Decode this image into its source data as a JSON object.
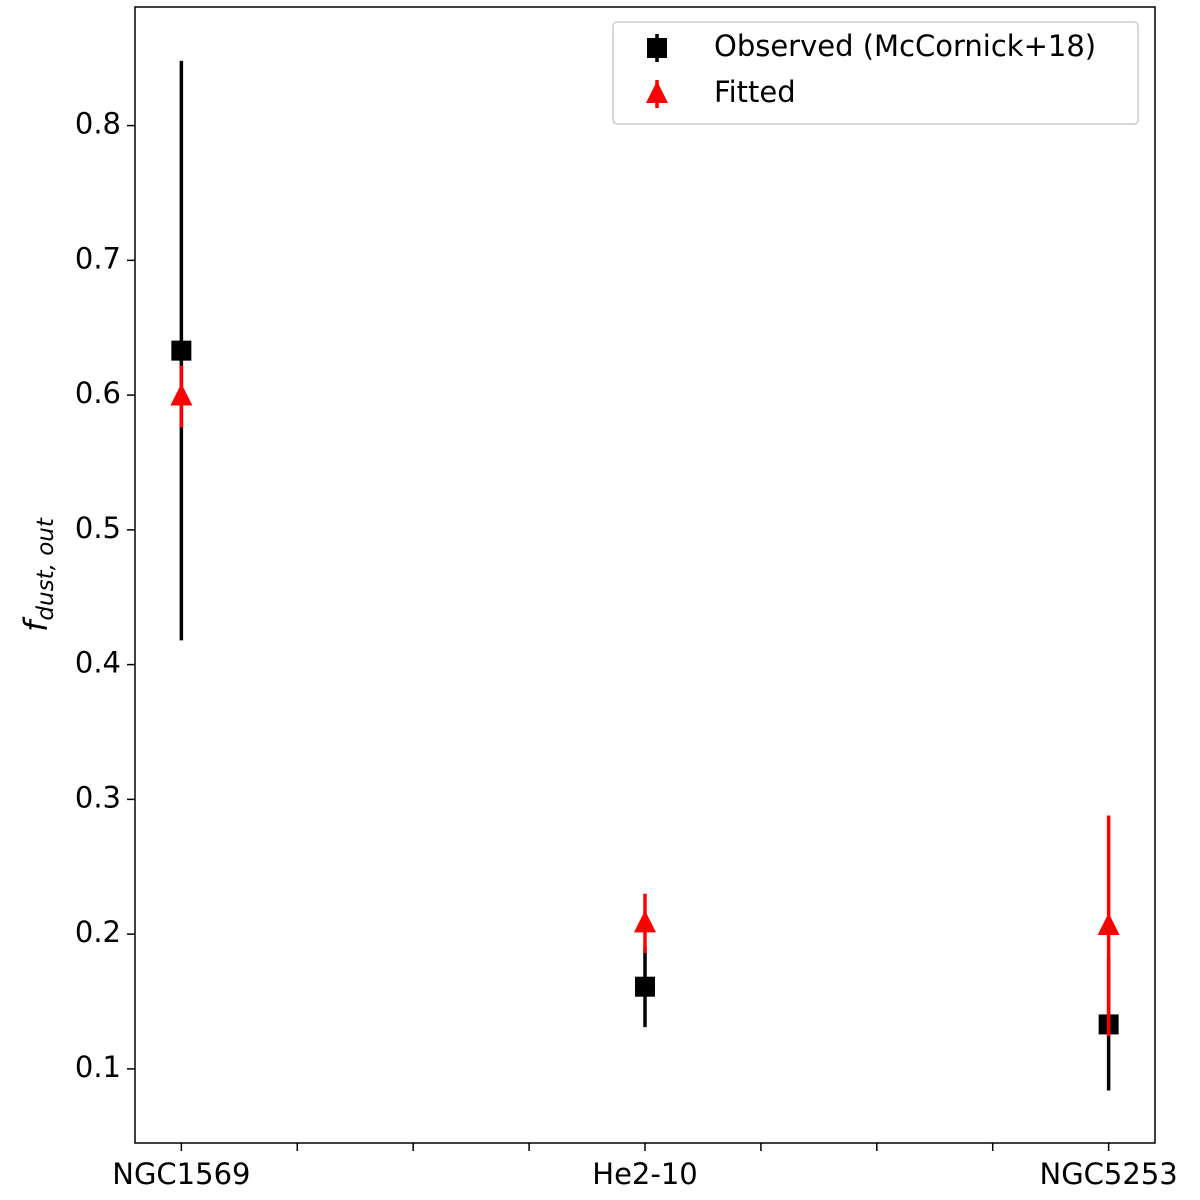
{
  "chart_data": {
    "type": "errorbar",
    "ylabel": "f",
    "ylabel_subscript": "dust, out",
    "categories": [
      "NGC1569",
      null,
      null,
      null,
      "He2-10",
      null,
      null,
      null,
      "NGC5253"
    ],
    "xlim": [
      -0.4,
      8.4
    ],
    "ylim": [
      0.045,
      0.888
    ],
    "yticks": [
      0.1,
      0.2,
      0.3,
      0.4,
      0.5,
      0.6,
      0.7,
      0.8
    ],
    "legend": "upper right",
    "series": [
      {
        "name": "Observed (McCornick+18)",
        "color": "#000000",
        "marker": "square",
        "values": [
          0.633,
          null,
          null,
          null,
          0.161,
          null,
          null,
          null,
          0.133
        ],
        "errors": [
          0.215,
          null,
          null,
          null,
          0.03,
          null,
          null,
          null,
          0.049
        ]
      },
      {
        "name": "Fitted",
        "color": "#ff0000",
        "marker": "triangle",
        "values": [
          0.599,
          null,
          null,
          null,
          0.208,
          null,
          null,
          null,
          0.206
        ],
        "errors": [
          0.023,
          null,
          null,
          null,
          0.022,
          null,
          null,
          null,
          0.082
        ]
      }
    ]
  }
}
